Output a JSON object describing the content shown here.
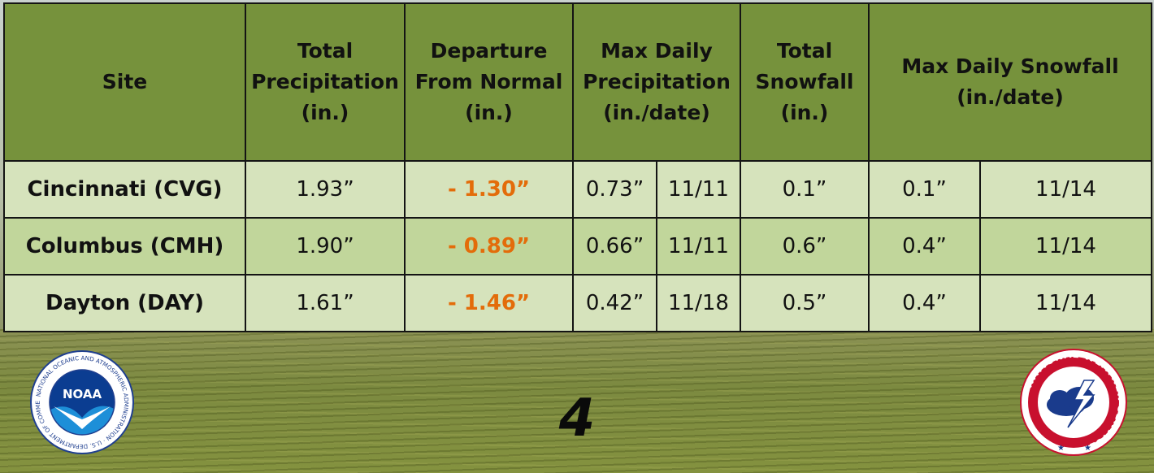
{
  "table": {
    "headers": {
      "site": "Site",
      "total_precip": [
        "Total",
        "Precipitation",
        "(in.)"
      ],
      "departure": [
        "Departure",
        "From Normal",
        "(in.)"
      ],
      "max_daily_precip": [
        "Max Daily",
        "Precipitation",
        "(in./date)"
      ],
      "total_snowfall": [
        "Total",
        "Snowfall",
        "(in.)"
      ],
      "max_daily_snowfall": [
        "Max Daily Snowfall",
        "(in./date)"
      ]
    },
    "rows": [
      {
        "site": "Cincinnati (CVG)",
        "total_precip": "1.93”",
        "departure": "- 1.30”",
        "max_precip": "0.73”",
        "max_precip_date": "11/11",
        "total_snowfall": "0.1”",
        "max_snowfall": "0.1”",
        "max_snowfall_date": "11/14"
      },
      {
        "site": "Columbus (CMH)",
        "total_precip": "1.90”",
        "departure": "- 0.89”",
        "max_precip": "0.66”",
        "max_precip_date": "11/11",
        "total_snowfall": "0.6”",
        "max_snowfall": "0.4”",
        "max_snowfall_date": "11/14"
      },
      {
        "site": "Dayton (DAY)",
        "total_precip": "1.61”",
        "departure": "- 1.46”",
        "max_precip": "0.42”",
        "max_precip_date": "11/18",
        "total_snowfall": "0.5”",
        "max_snowfall": "0.4”",
        "max_snowfall_date": "11/14"
      }
    ]
  },
  "page_number": "4",
  "logos": {
    "noaa": {
      "text": "NOAA",
      "ring_text": "NATIONAL OCEANIC AND ATMOSPHERIC ADMINISTRATION · U.S. DEPARTMENT OF COMMERCE"
    },
    "nws": {
      "ring_text": "NATIONAL WEATHER SERVICE"
    }
  },
  "colors": {
    "header_bg": "#76923c",
    "row_light": "#d6e3bc",
    "row_dark": "#c1d69b",
    "departure_text": "#e36c0a"
  }
}
